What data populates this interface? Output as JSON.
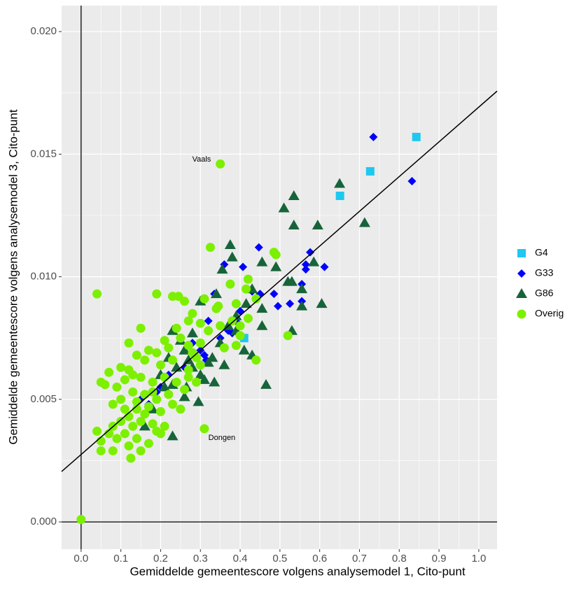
{
  "chart_data": {
    "type": "scatter",
    "x_label": "Gemiddelde gemeentescore volgens analysemodel 1, Cito-punt",
    "y_label": "Gemiddelde gemeentescore volgens analysemodel 3, Cito-punt",
    "xlim": [
      -0.049,
      1.046
    ],
    "ylim": [
      -0.00111,
      0.02106
    ],
    "xticks": [
      {
        "value": 0,
        "label": "0.0"
      },
      0.1,
      0.2,
      0.3,
      0.4,
      0.5,
      0.6,
      0.7,
      0.8,
      0.9,
      {
        "value": 1,
        "label": "1.0"
      }
    ],
    "yticks": [
      {
        "value": 0,
        "label": "0.000"
      },
      {
        "value": 0.005,
        "label": "0.005"
      },
      {
        "value": 0.01,
        "label": "0.010"
      },
      {
        "value": 0.015,
        "label": "0.015"
      },
      {
        "value": 0.02,
        "label": "0.020"
      }
    ],
    "grid": true,
    "fit_line": {
      "intercept": 0.00275,
      "slope": 0.01417
    },
    "annotations": [
      {
        "text": "Vaals",
        "x": 0.303,
        "y": 0.01478
      },
      {
        "text": "Dongen",
        "x": 0.354,
        "y": 0.00342
      }
    ],
    "series": [
      {
        "name": "G4",
        "color": "#1ec8f0",
        "marker": "square",
        "x": [
          0.843,
          0.727,
          0.651,
          0.41
        ],
        "values": [
          0.0157,
          0.0143,
          0.0133,
          0.0075
        ]
      },
      {
        "name": "G33",
        "color": "#0000ff",
        "marker": "diamond",
        "x": [
          0.735,
          0.832,
          0.447,
          0.576,
          0.565,
          0.612,
          0.407,
          0.565,
          0.36,
          0.335,
          0.485,
          0.555,
          0.525,
          0.495,
          0.555,
          0.4,
          0.395,
          0.38,
          0.35,
          0.32,
          0.3,
          0.315,
          0.28,
          0.31,
          0.26,
          0.22,
          0.2,
          0.19,
          0.15,
          0.17,
          0.37,
          0.43,
          0.45
        ],
        "values": [
          0.0157,
          0.0139,
          0.0112,
          0.011,
          0.0105,
          0.0104,
          0.0104,
          0.0103,
          0.0105,
          0.0093,
          0.0093,
          0.0097,
          0.0089,
          0.0088,
          0.009,
          0.0086,
          0.0081,
          0.0077,
          0.0075,
          0.0082,
          0.007,
          0.0066,
          0.0073,
          0.0068,
          0.0063,
          0.006,
          0.0055,
          0.0053,
          0.005,
          0.0048,
          0.0078,
          0.0094,
          0.0093
        ]
      },
      {
        "name": "G86",
        "color": "#17643a",
        "marker": "triangle",
        "x": [
          0.65,
          0.535,
          0.51,
          0.535,
          0.595,
          0.713,
          0.375,
          0.38,
          0.355,
          0.455,
          0.49,
          0.585,
          0.52,
          0.53,
          0.555,
          0.43,
          0.605,
          0.555,
          0.455,
          0.415,
          0.34,
          0.3,
          0.39,
          0.455,
          0.53,
          0.43,
          0.41,
          0.465,
          0.35,
          0.33,
          0.32,
          0.36,
          0.3,
          0.31,
          0.335,
          0.28,
          0.27,
          0.26,
          0.23,
          0.25,
          0.22,
          0.24,
          0.2,
          0.21,
          0.23,
          0.26,
          0.295,
          0.23,
          0.16,
          0.18,
          0.37,
          0.39,
          0.28,
          0.265
        ],
        "values": [
          0.0138,
          0.0133,
          0.0128,
          0.0121,
          0.0121,
          0.0122,
          0.0113,
          0.0108,
          0.0103,
          0.0106,
          0.0104,
          0.0106,
          0.0098,
          0.0098,
          0.0095,
          0.0095,
          0.0089,
          0.0088,
          0.0087,
          0.0089,
          0.0093,
          0.009,
          0.0084,
          0.008,
          0.0078,
          0.0068,
          0.007,
          0.0056,
          0.0073,
          0.0067,
          0.0065,
          0.0064,
          0.006,
          0.0058,
          0.0057,
          0.0063,
          0.0066,
          0.007,
          0.0078,
          0.0074,
          0.0067,
          0.0063,
          0.006,
          0.0055,
          0.0056,
          0.0051,
          0.0049,
          0.0035,
          0.0039,
          0.0046,
          0.008,
          0.0078,
          0.0077,
          0.0055
        ]
      },
      {
        "name": "Overig",
        "color": "#7cf000",
        "marker": "circle",
        "x": [
          0.0,
          0.04,
          0.35,
          0.31,
          0.325,
          0.485,
          0.49,
          0.375,
          0.42,
          0.415,
          0.44,
          0.52,
          0.44,
          0.39,
          0.4,
          0.34,
          0.345,
          0.39,
          0.19,
          0.23,
          0.245,
          0.26,
          0.28,
          0.31,
          0.3,
          0.27,
          0.24,
          0.21,
          0.15,
          0.12,
          0.17,
          0.19,
          0.22,
          0.25,
          0.27,
          0.29,
          0.14,
          0.16,
          0.2,
          0.23,
          0.1,
          0.12,
          0.07,
          0.05,
          0.06,
          0.09,
          0.11,
          0.13,
          0.15,
          0.18,
          0.21,
          0.24,
          0.27,
          0.26,
          0.22,
          0.19,
          0.16,
          0.13,
          0.1,
          0.08,
          0.11,
          0.14,
          0.17,
          0.2,
          0.23,
          0.25,
          0.12,
          0.1,
          0.08,
          0.07,
          0.04,
          0.05,
          0.09,
          0.11,
          0.13,
          0.15,
          0.18,
          0.21,
          0.19,
          0.14,
          0.12,
          0.08,
          0.05,
          0.125,
          0.15,
          0.17,
          0.2,
          0.16,
          0.14,
          0.18,
          0.3,
          0.32,
          0.28,
          0.3,
          0.29,
          0.27,
          0.35,
          0.36,
          0.38,
          0.4,
          0.42
        ],
        "values": [
          0.0001,
          0.0093,
          0.0146,
          0.0038,
          0.0112,
          0.011,
          0.0109,
          0.0097,
          0.0099,
          0.0095,
          0.0091,
          0.0076,
          0.0066,
          0.0072,
          0.0076,
          0.0087,
          0.0088,
          0.0089,
          0.0093,
          0.0092,
          0.0092,
          0.009,
          0.0085,
          0.0091,
          0.0081,
          0.0082,
          0.0079,
          0.0074,
          0.0079,
          0.0073,
          0.007,
          0.0069,
          0.0071,
          0.0075,
          0.0072,
          0.0067,
          0.0068,
          0.0066,
          0.0064,
          0.0066,
          0.0063,
          0.0062,
          0.0061,
          0.0057,
          0.0056,
          0.0055,
          0.0058,
          0.006,
          0.0059,
          0.0057,
          0.0059,
          0.0057,
          0.0059,
          0.0054,
          0.0052,
          0.005,
          0.0052,
          0.0053,
          0.005,
          0.0048,
          0.0046,
          0.0046,
          0.0047,
          0.0045,
          0.0048,
          0.0046,
          0.0043,
          0.0041,
          0.0039,
          0.0036,
          0.0037,
          0.0033,
          0.0034,
          0.0036,
          0.0039,
          0.0041,
          0.004,
          0.0039,
          0.0037,
          0.0034,
          0.0031,
          0.0029,
          0.0029,
          0.0026,
          0.0029,
          0.0032,
          0.0036,
          0.0044,
          0.0049,
          0.0053,
          0.0073,
          0.0078,
          0.0069,
          0.0064,
          0.0057,
          0.0062,
          0.008,
          0.0071,
          0.0082,
          0.008,
          0.0083
        ]
      }
    ]
  }
}
